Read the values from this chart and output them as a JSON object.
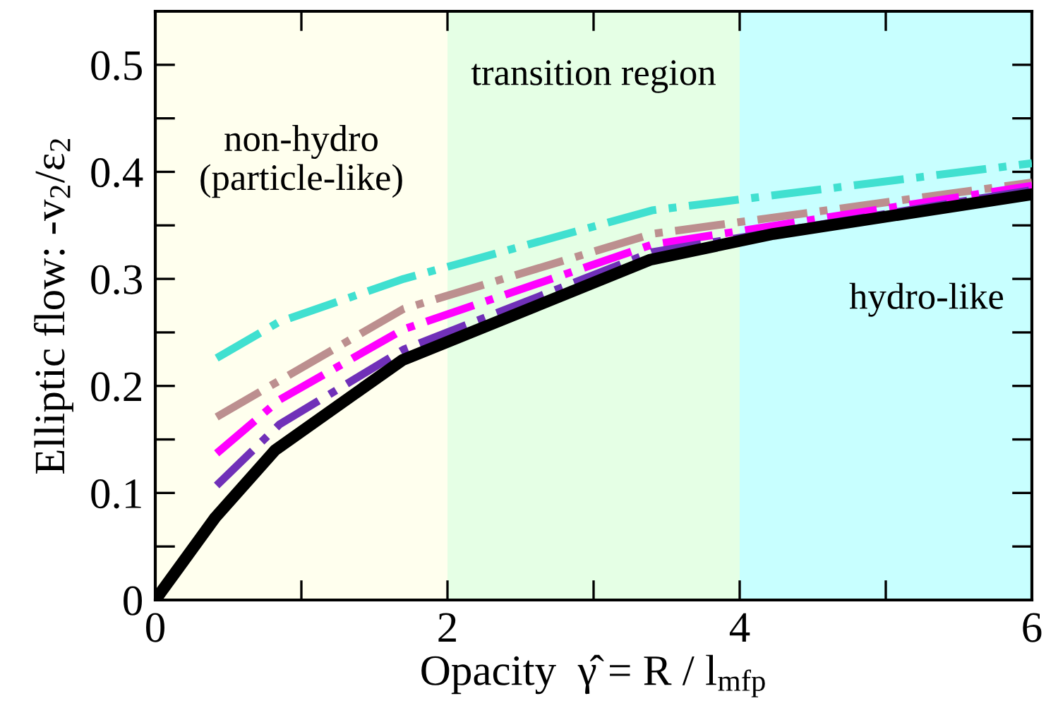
{
  "chart_data": {
    "type": "line",
    "xlabel": "Opacity  γ̂ = R / l$_{mfp}$",
    "ylabel": "Elliptic flow: -v$_{2}$/ε$_{2}$",
    "xlim": [
      0,
      6
    ],
    "ylim": [
      0,
      0.55
    ],
    "xticks": [
      0,
      {
        "value": 1,
        "label": null
      },
      2,
      {
        "value": 3,
        "label": null
      },
      4,
      {
        "value": 5,
        "label": null
      },
      6
    ],
    "yticks": [
      0,
      {
        "value": 0.05,
        "label": null
      },
      0.1,
      {
        "value": 0.15,
        "label": null
      },
      0.2,
      {
        "value": 0.25,
        "label": null
      },
      0.3,
      {
        "value": 0.35,
        "label": null
      },
      0.4,
      {
        "value": 0.45,
        "label": null
      },
      0.5
    ],
    "grid": false,
    "legend": false,
    "bands": [
      {
        "axis": "x",
        "from": 0,
        "to": 2,
        "color": "#ffffee",
        "label": "non-hydro\n(particle-like)"
      },
      {
        "axis": "x",
        "from": 2,
        "to": 4,
        "color": "#e5ffe5",
        "label": "transition region"
      },
      {
        "axis": "x",
        "from": 4,
        "to": 6,
        "color": "#c8ffff",
        "label": "hydro-like"
      }
    ],
    "series": [
      {
        "color": "#40e0d0",
        "line_style": "dashdot",
        "x": [
          0.42,
          0.85,
          1.7,
          3.4,
          6
        ],
        "values": [
          0.226,
          0.26,
          0.3,
          0.364,
          0.408
        ]
      },
      {
        "color": "#bc8f8f",
        "line_style": "dashdot",
        "x": [
          0.42,
          0.85,
          1.7,
          3.4,
          6
        ],
        "values": [
          0.171,
          0.205,
          0.272,
          0.342,
          0.39
        ]
      },
      {
        "color": "#ff00ff",
        "line_style": "dashdot",
        "x": [
          0.42,
          0.85,
          1.7,
          3.4,
          6
        ],
        "values": [
          0.137,
          0.187,
          0.253,
          0.332,
          0.387
        ]
      },
      {
        "color": "#7030b8",
        "line_style": "dashdot",
        "x": [
          0.42,
          0.85,
          1.7,
          3.4,
          6
        ],
        "values": [
          0.107,
          0.164,
          0.234,
          0.325,
          0.383
        ]
      },
      {
        "color": "#000000",
        "line_style": "solid",
        "x": [
          0,
          0.41,
          0.82,
          1.69,
          3.39,
          4.23,
          6
        ],
        "values": [
          0,
          0.077,
          0.14,
          0.224,
          0.318,
          0.342,
          0.379
        ]
      }
    ]
  }
}
